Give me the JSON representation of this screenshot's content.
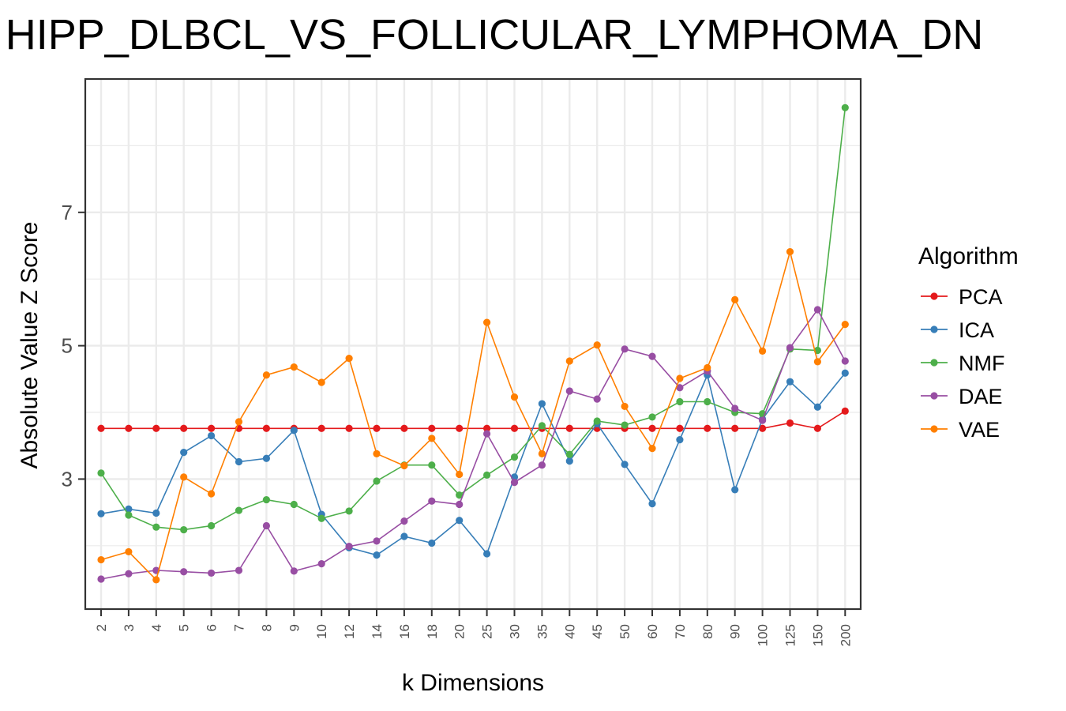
{
  "chart_data": {
    "type": "line",
    "title": "HIPP_DLBCL_VS_FOLLICULAR_LYMPHOMA_DN",
    "xlabel": "k Dimensions",
    "ylabel": "Absolute Value Z Score",
    "categories": [
      "2",
      "3",
      "4",
      "5",
      "6",
      "7",
      "8",
      "9",
      "10",
      "12",
      "14",
      "16",
      "18",
      "20",
      "25",
      "30",
      "35",
      "40",
      "45",
      "50",
      "60",
      "70",
      "80",
      "90",
      "100",
      "125",
      "150",
      "200"
    ],
    "yticks": [
      3,
      5,
      7
    ],
    "ylim": [
      1.05,
      9.0
    ],
    "grid": true,
    "legend_title": "Algorithm",
    "legend_position": "right",
    "series": [
      {
        "name": "PCA",
        "color": "#E41A1C",
        "values": [
          3.76,
          3.76,
          3.76,
          3.76,
          3.76,
          3.76,
          3.76,
          3.76,
          3.76,
          3.76,
          3.76,
          3.76,
          3.76,
          3.76,
          3.76,
          3.76,
          3.76,
          3.76,
          3.76,
          3.76,
          3.76,
          3.76,
          3.76,
          3.76,
          3.76,
          3.84,
          3.76,
          4.02
        ]
      },
      {
        "name": "ICA",
        "color": "#377EB8",
        "values": [
          2.48,
          2.55,
          2.49,
          3.4,
          3.65,
          3.26,
          3.31,
          3.73,
          2.47,
          1.97,
          1.86,
          2.14,
          2.04,
          2.38,
          1.88,
          3.03,
          4.13,
          3.27,
          3.83,
          3.22,
          2.63,
          3.59,
          4.56,
          2.84,
          3.9,
          4.46,
          4.08,
          4.59
        ]
      },
      {
        "name": "NMF",
        "color": "#4DAF4A",
        "values": [
          3.09,
          2.46,
          2.28,
          2.24,
          2.3,
          2.53,
          2.69,
          2.62,
          2.41,
          2.52,
          2.97,
          3.21,
          3.21,
          2.76,
          3.06,
          3.33,
          3.8,
          3.37,
          3.87,
          3.81,
          3.93,
          4.16,
          4.16,
          4.0,
          3.98,
          4.95,
          4.93,
          8.57
        ]
      },
      {
        "name": "DAE",
        "color": "#984EA3",
        "values": [
          1.5,
          1.58,
          1.63,
          1.61,
          1.59,
          1.63,
          2.3,
          1.62,
          1.73,
          1.99,
          2.07,
          2.37,
          2.67,
          2.62,
          3.68,
          2.95,
          3.21,
          4.32,
          4.2,
          4.95,
          4.84,
          4.37,
          4.62,
          4.06,
          3.88,
          4.97,
          5.54,
          4.77
        ]
      },
      {
        "name": "VAE",
        "color": "#FF7F00",
        "values": [
          1.79,
          1.91,
          1.49,
          3.03,
          2.78,
          3.86,
          4.56,
          4.68,
          4.45,
          4.81,
          3.38,
          3.2,
          3.61,
          3.07,
          5.35,
          4.23,
          3.38,
          4.77,
          5.01,
          4.09,
          3.46,
          4.51,
          4.67,
          5.69,
          4.92,
          6.41,
          4.76,
          5.32
        ]
      }
    ]
  }
}
